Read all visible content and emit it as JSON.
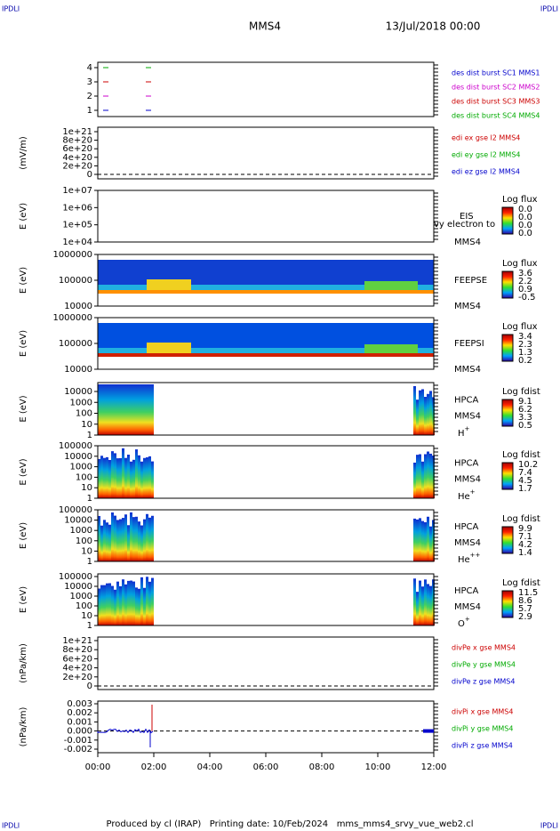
{
  "header": {
    "left": "IPDLI",
    "right": "IPDLI",
    "title": "MMS4",
    "date": "13/Jul/2018 00:00"
  },
  "panels": [
    {
      "ylabel": "",
      "yticks": [
        "4",
        "3",
        "2",
        "1"
      ],
      "labels": [
        {
          "text": "des dist burst SC1 MMS1",
          "color": "#0000cc"
        },
        {
          "text": "des dist burst SC2 MMS2",
          "color": "#cc00cc"
        },
        {
          "text": "des dist burst SC3 MMS3",
          "color": "#cc0000"
        },
        {
          "text": "des dist burst SC4 MMS4",
          "color": "#00aa00"
        }
      ]
    },
    {
      "ylabel": "(mV/m)",
      "yticks": [
        "1e+21",
        "8e+20",
        "6e+20",
        "4e+20",
        "2e+20",
        "0"
      ],
      "labels": [
        {
          "text": "edi ex gse l2 MMS4",
          "color": "#cc0000"
        },
        {
          "text": "edi ey gse l2 MMS4",
          "color": "#00aa00"
        },
        {
          "text": "edi ez gse l2 MMS4",
          "color": "#0000cc"
        }
      ]
    },
    {
      "ylabel": "E (eV)",
      "yticks": [
        "1e+07",
        "1e+06",
        "1e+05",
        "1e+04"
      ],
      "instrument": [
        "EIS",
        "MMS4"
      ],
      "note": "vy electron to",
      "colorbar": {
        "title": "Log flux",
        "ticks": [
          "0.0",
          "0.0",
          "0.0",
          "0.0"
        ]
      }
    },
    {
      "ylabel": "E (eV)",
      "yticks": [
        "1000000",
        "100000",
        "10000"
      ],
      "instrument": [
        "FEEPSE",
        "MMS4"
      ],
      "colorbar": {
        "title": "Log flux",
        "ticks": [
          "3.6",
          "2.2",
          "0.9",
          "-0.5"
        ]
      }
    },
    {
      "ylabel": "E (eV)",
      "yticks": [
        "1000000",
        "100000",
        "10000"
      ],
      "instrument": [
        "FEEPSI",
        "MMS4"
      ],
      "colorbar": {
        "title": "Log flux",
        "ticks": [
          "3.4",
          "2.3",
          "1.3",
          "0.2"
        ]
      }
    },
    {
      "ylabel": "E (eV)",
      "yticks": [
        "10000",
        "1000",
        "100",
        "10",
        "1"
      ],
      "instrument": [
        "HPCA",
        "MMS4"
      ],
      "species": {
        "base": "H",
        "sup": "+"
      },
      "colorbar": {
        "title": "Log fdist",
        "ticks": [
          "9.1",
          "6.2",
          "3.3",
          "0.5"
        ]
      }
    },
    {
      "ylabel": "E (eV)",
      "yticks": [
        "100000",
        "10000",
        "1000",
        "100",
        "10",
        "1"
      ],
      "instrument": [
        "HPCA",
        "MMS4"
      ],
      "species": {
        "base": "He",
        "sup": "+"
      },
      "colorbar": {
        "title": "Log fdist",
        "ticks": [
          "10.2",
          "7.4",
          "4.5",
          "1.7"
        ]
      }
    },
    {
      "ylabel": "E (eV)",
      "yticks": [
        "100000",
        "10000",
        "1000",
        "100",
        "10",
        "1"
      ],
      "instrument": [
        "HPCA",
        "MMS4"
      ],
      "species": {
        "base": "He",
        "sup": "++"
      },
      "colorbar": {
        "title": "Log fdist",
        "ticks": [
          "9.9",
          "7.1",
          "4.2",
          "1.4"
        ]
      }
    },
    {
      "ylabel": "E (eV)",
      "yticks": [
        "100000",
        "10000",
        "1000",
        "100",
        "10",
        "1"
      ],
      "instrument": [
        "HPCA",
        "MMS4"
      ],
      "species": {
        "base": "O",
        "sup": "+"
      },
      "colorbar": {
        "title": "Log fdist",
        "ticks": [
          "11.5",
          "8.6",
          "5.7",
          "2.9"
        ]
      }
    },
    {
      "ylabel": "(nPa/km)",
      "yticks": [
        "1e+21",
        "8e+20",
        "6e+20",
        "4e+20",
        "2e+20",
        "0"
      ],
      "labels": [
        {
          "text": "divPe x gse MMS4",
          "color": "#cc0000"
        },
        {
          "text": "divPe y gse MMS4",
          "color": "#00aa00"
        },
        {
          "text": "divPe z gse MMS4",
          "color": "#0000cc"
        }
      ]
    },
    {
      "ylabel": "(nPa/km)",
      "yticks": [
        "0.003",
        "0.002",
        "0.001",
        "0.000",
        "-0.001",
        "-0.002"
      ],
      "labels": [
        {
          "text": "divPi x gse MMS4",
          "color": "#cc0000"
        },
        {
          "text": "divPi y gse MMS4",
          "color": "#00aa00"
        },
        {
          "text": "divPi z gse MMS4",
          "color": "#0000cc"
        }
      ]
    }
  ],
  "xticks": [
    "00:00",
    "02:00",
    "04:00",
    "06:00",
    "08:00",
    "10:00",
    "12:00"
  ],
  "footer": "Produced by cl (IRAP)   Printing date: 10/Feb/2024   mms_mms4_srvy_vue_web2.cl"
}
